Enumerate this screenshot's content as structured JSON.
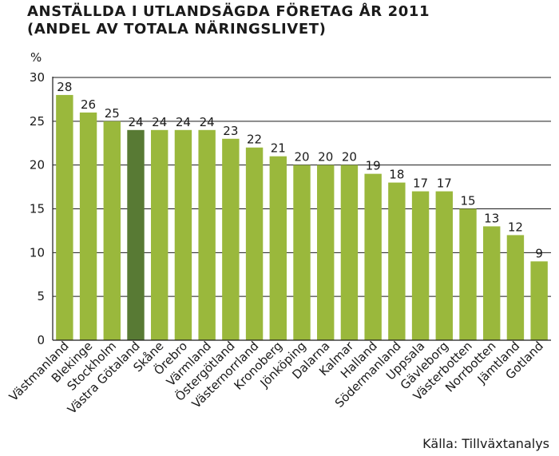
{
  "chart_data": {
    "type": "bar",
    "title": "ANSTÄLLDA I UTLANDSÄGDA FÖRETAG ÅR 2011",
    "subtitle": "(ANDEL AV TOTALA NÄRINGSLIVET)",
    "ylabel": "%",
    "source": "Källa: Tillväxtanalys",
    "ylim": [
      0,
      30
    ],
    "yticks": [
      0,
      5,
      10,
      15,
      20,
      25,
      30
    ],
    "grid": true,
    "categories": [
      "Västmanland",
      "Blekinge",
      "Stockholm",
      "Västra Götaland",
      "Skåne",
      "Örebro",
      "Värmland",
      "Östergötland",
      "Västernorrland",
      "Kronoberg",
      "Jönköping",
      "Dalarna",
      "Kalmar",
      "Halland",
      "Södermanland",
      "Uppsala",
      "Gävleborg",
      "Västerbotten",
      "Norrbotten",
      "Jämtland",
      "Gotland"
    ],
    "values": [
      28,
      26,
      25,
      24,
      24,
      24,
      24,
      23,
      22,
      21,
      20,
      20,
      20,
      19,
      18,
      17,
      17,
      15,
      13,
      12,
      9
    ],
    "bar_color": "#9ab83c",
    "highlight_color": "#587a34",
    "highlight_index": 3
  }
}
